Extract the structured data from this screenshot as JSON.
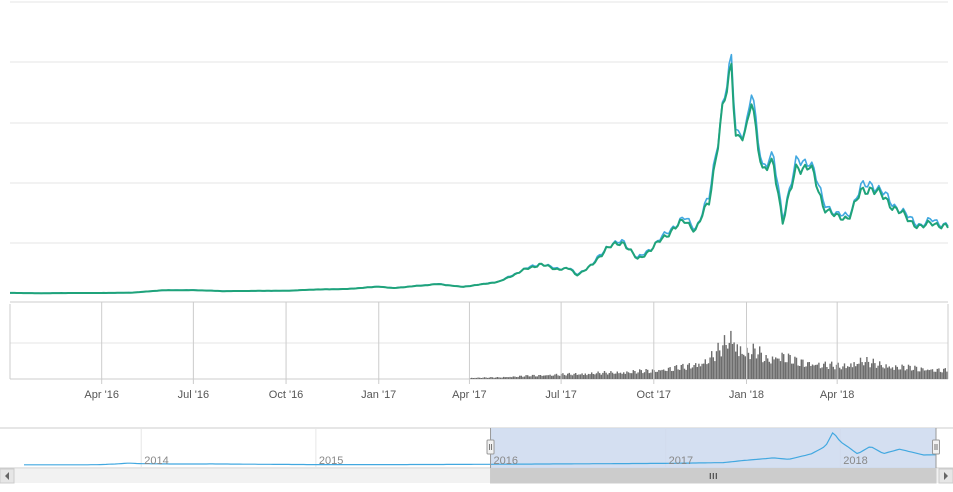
{
  "chart_data": {
    "type": "line",
    "title": "",
    "xlabel": "",
    "ylabel": "",
    "grid": true,
    "x_range": [
      "2016-01-01",
      "2018-07-20"
    ],
    "x_tick_labels": [
      "Apr '16",
      "Jul '16",
      "Oct '16",
      "Jan '17",
      "Apr '17",
      "Jul '17",
      "Oct '17",
      "Jan '18",
      "Apr '18"
    ],
    "x_tick_dates": [
      "2016-04-01",
      "2016-07-01",
      "2016-10-01",
      "2017-01-01",
      "2017-04-01",
      "2017-07-01",
      "2017-10-01",
      "2018-01-01",
      "2018-04-01"
    ],
    "series": [
      {
        "color": "#42a8e0",
        "points": [
          [
            "2016-01-01",
            430
          ],
          [
            "2016-02-01",
            400
          ],
          [
            "2016-03-01",
            420
          ],
          [
            "2016-04-01",
            420
          ],
          [
            "2016-05-01",
            450
          ],
          [
            "2016-06-01",
            650
          ],
          [
            "2016-07-01",
            670
          ],
          [
            "2016-08-01",
            580
          ],
          [
            "2016-09-01",
            600
          ],
          [
            "2016-10-01",
            610
          ],
          [
            "2016-11-01",
            720
          ],
          [
            "2016-12-01",
            760
          ],
          [
            "2017-01-01",
            970
          ],
          [
            "2017-01-15",
            840
          ],
          [
            "2017-02-01",
            970
          ],
          [
            "2017-03-01",
            1190
          ],
          [
            "2017-03-25",
            940
          ],
          [
            "2017-04-15",
            1180
          ],
          [
            "2017-05-01",
            1400
          ],
          [
            "2017-05-25",
            2400
          ],
          [
            "2017-06-10",
            2900
          ],
          [
            "2017-06-25",
            2500
          ],
          [
            "2017-07-10",
            2500
          ],
          [
            "2017-07-16",
            1950
          ],
          [
            "2017-08-01",
            2800
          ],
          [
            "2017-08-15",
            4300
          ],
          [
            "2017-09-01",
            4800
          ],
          [
            "2017-09-15",
            3300
          ],
          [
            "2017-10-01",
            4400
          ],
          [
            "2017-10-20",
            6000
          ],
          [
            "2017-11-01",
            6700
          ],
          [
            "2017-11-12",
            5900
          ],
          [
            "2017-11-25",
            8500
          ],
          [
            "2017-12-07",
            15500
          ],
          [
            "2017-12-17",
            19700
          ],
          [
            "2017-12-22",
            13900
          ],
          [
            "2018-01-01",
            14200
          ],
          [
            "2018-01-06",
            17200
          ],
          [
            "2018-01-17",
            11200
          ],
          [
            "2018-01-28",
            11700
          ],
          [
            "2018-02-06",
            6900
          ],
          [
            "2018-02-20",
            11500
          ],
          [
            "2018-03-05",
            11600
          ],
          [
            "2018-03-18",
            8200
          ],
          [
            "2018-04-01",
            6900
          ],
          [
            "2018-04-12",
            7000
          ],
          [
            "2018-04-25",
            9300
          ],
          [
            "2018-05-05",
            9700
          ],
          [
            "2018-05-20",
            8500
          ],
          [
            "2018-06-01",
            7500
          ],
          [
            "2018-06-12",
            6700
          ],
          [
            "2018-06-24",
            6100
          ],
          [
            "2018-07-05",
            6600
          ],
          [
            "2018-07-15",
            6200
          ],
          [
            "2018-07-20",
            6100
          ]
        ]
      },
      {
        "color": "#1fa37a",
        "points": [
          [
            "2016-01-01",
            430
          ],
          [
            "2016-02-01",
            400
          ],
          [
            "2016-03-01",
            420
          ],
          [
            "2016-04-01",
            420
          ],
          [
            "2016-05-01",
            450
          ],
          [
            "2016-06-01",
            650
          ],
          [
            "2016-07-01",
            660
          ],
          [
            "2016-08-01",
            575
          ],
          [
            "2016-09-01",
            600
          ],
          [
            "2016-10-01",
            605
          ],
          [
            "2016-11-01",
            715
          ],
          [
            "2016-12-01",
            755
          ],
          [
            "2017-01-01",
            960
          ],
          [
            "2017-01-15",
            830
          ],
          [
            "2017-02-01",
            960
          ],
          [
            "2017-03-01",
            1170
          ],
          [
            "2017-03-25",
            930
          ],
          [
            "2017-04-15",
            1170
          ],
          [
            "2017-05-01",
            1380
          ],
          [
            "2017-05-25",
            2350
          ],
          [
            "2017-06-10",
            2850
          ],
          [
            "2017-06-25",
            2450
          ],
          [
            "2017-07-10",
            2450
          ],
          [
            "2017-07-16",
            1900
          ],
          [
            "2017-08-01",
            2750
          ],
          [
            "2017-08-15",
            4200
          ],
          [
            "2017-09-01",
            4700
          ],
          [
            "2017-09-15",
            3200
          ],
          [
            "2017-10-01",
            4300
          ],
          [
            "2017-10-20",
            5800
          ],
          [
            "2017-11-01",
            6500
          ],
          [
            "2017-11-12",
            5700
          ],
          [
            "2017-11-25",
            8200
          ],
          [
            "2017-12-07",
            15000
          ],
          [
            "2017-12-17",
            19400
          ],
          [
            "2017-12-22",
            13500
          ],
          [
            "2018-01-01",
            13700
          ],
          [
            "2018-01-06",
            16700
          ],
          [
            "2018-01-17",
            10700
          ],
          [
            "2018-01-28",
            11200
          ],
          [
            "2018-02-06",
            6500
          ],
          [
            "2018-02-20",
            11000
          ],
          [
            "2018-03-05",
            11100
          ],
          [
            "2018-03-18",
            7800
          ],
          [
            "2018-04-01",
            6700
          ],
          [
            "2018-04-12",
            6800
          ],
          [
            "2018-04-25",
            8900
          ],
          [
            "2018-05-05",
            9300
          ],
          [
            "2018-05-20",
            8200
          ],
          [
            "2018-06-01",
            7300
          ],
          [
            "2018-06-12",
            6500
          ],
          [
            "2018-06-24",
            5900
          ],
          [
            "2018-07-05",
            6400
          ],
          [
            "2018-07-15",
            6000
          ],
          [
            "2018-07-20",
            5900
          ]
        ]
      }
    ],
    "volume": {
      "color": "#6d6d6d",
      "points": [
        [
          "2017-04-01",
          0.02
        ],
        [
          "2017-05-01",
          0.03
        ],
        [
          "2017-06-01",
          0.06
        ],
        [
          "2017-07-01",
          0.08
        ],
        [
          "2017-08-01",
          0.1
        ],
        [
          "2017-09-01",
          0.12
        ],
        [
          "2017-10-01",
          0.15
        ],
        [
          "2017-11-01",
          0.22
        ],
        [
          "2017-11-20",
          0.3
        ],
        [
          "2017-12-01",
          0.45
        ],
        [
          "2017-12-10",
          0.62
        ],
        [
          "2017-12-17",
          0.75
        ],
        [
          "2017-12-24",
          0.55
        ],
        [
          "2018-01-01",
          0.45
        ],
        [
          "2018-01-10",
          0.5
        ],
        [
          "2018-01-20",
          0.35
        ],
        [
          "2018-02-05",
          0.42
        ],
        [
          "2018-02-20",
          0.3
        ],
        [
          "2018-03-05",
          0.28
        ],
        [
          "2018-03-20",
          0.25
        ],
        [
          "2018-04-05",
          0.22
        ],
        [
          "2018-04-25",
          0.32
        ],
        [
          "2018-05-10",
          0.26
        ],
        [
          "2018-05-25",
          0.22
        ],
        [
          "2018-06-10",
          0.2
        ],
        [
          "2018-06-25",
          0.18
        ],
        [
          "2018-07-10",
          0.16
        ],
        [
          "2018-07-20",
          0.15
        ]
      ]
    },
    "navigator": {
      "x_range": [
        "2013-05-01",
        "2018-07-20"
      ],
      "selection": [
        "2016-01-01",
        "2018-07-20"
      ],
      "x_tick_labels": [
        "2014",
        "2015",
        "2016",
        "2017",
        "2018"
      ],
      "x_tick_dates": [
        "2014-01-01",
        "2015-01-01",
        "2016-01-01",
        "2017-01-01",
        "2018-01-01"
      ],
      "line_color": "#42a8e0",
      "selection_color": "#ccd9ef",
      "points": [
        [
          "2013-05-01",
          120
        ],
        [
          "2013-10-01",
          150
        ],
        [
          "2013-11-15",
          700
        ],
        [
          "2013-12-05",
          1100
        ],
        [
          "2014-01-01",
          800
        ],
        [
          "2014-03-01",
          600
        ],
        [
          "2014-06-01",
          620
        ],
        [
          "2014-10-01",
          380
        ],
        [
          "2015-01-15",
          210
        ],
        [
          "2015-06-01",
          230
        ],
        [
          "2015-11-01",
          350
        ],
        [
          "2016-01-01",
          430
        ],
        [
          "2016-06-01",
          650
        ],
        [
          "2017-01-01",
          960
        ],
        [
          "2017-05-01",
          1400
        ],
        [
          "2017-06-15",
          2700
        ],
        [
          "2017-08-15",
          4200
        ],
        [
          "2017-09-15",
          3300
        ],
        [
          "2017-11-01",
          6500
        ],
        [
          "2017-12-01",
          11000
        ],
        [
          "2017-12-17",
          19400
        ],
        [
          "2018-01-01",
          13700
        ],
        [
          "2018-01-17",
          10700
        ],
        [
          "2018-02-06",
          6500
        ],
        [
          "2018-03-05",
          11000
        ],
        [
          "2018-04-01",
          6700
        ],
        [
          "2018-05-05",
          9300
        ],
        [
          "2018-06-24",
          5900
        ],
        [
          "2018-07-20",
          6000
        ]
      ]
    }
  }
}
